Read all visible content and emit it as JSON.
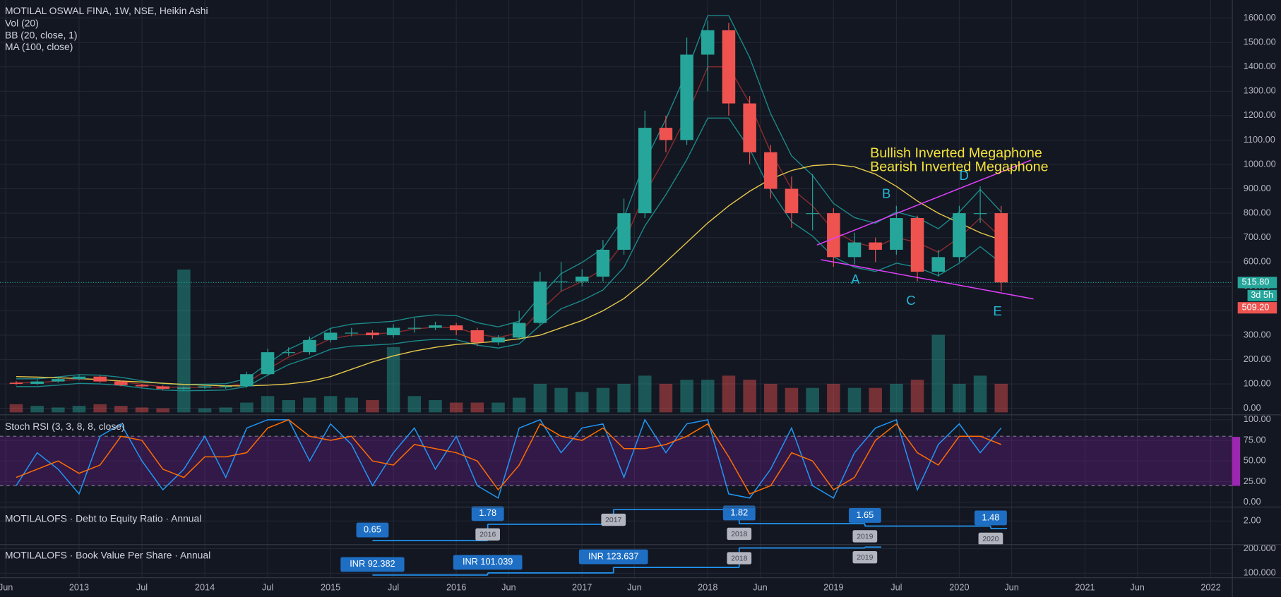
{
  "chart_data": [
    {
      "type": "candlestick",
      "title": "MOTILAL OSWAL FINA, 1W, NSE, Heikin Ashi",
      "indicator_labels": [
        "Vol (20)",
        "BB (20, close, 1)",
        "MA (100, close)"
      ],
      "x": [
        "2012-06",
        "2012-08",
        "2012-10",
        "2012-12",
        "2013-02",
        "2013-04",
        "2013-06",
        "2013-08",
        "2013-10",
        "2013-12",
        "2014-02",
        "2014-04",
        "2014-06",
        "2014-08",
        "2014-10",
        "2014-12",
        "2015-02",
        "2015-04",
        "2015-06",
        "2015-08",
        "2015-10",
        "2015-12",
        "2016-02",
        "2016-04",
        "2016-06",
        "2016-08",
        "2016-10",
        "2016-12",
        "2017-02",
        "2017-04",
        "2017-06",
        "2017-08",
        "2017-10",
        "2017-12",
        "2018-02",
        "2018-04",
        "2018-06",
        "2018-08",
        "2018-10",
        "2018-12",
        "2019-02",
        "2019-04",
        "2019-06",
        "2019-08",
        "2019-10",
        "2019-12",
        "2020-02",
        "2020-04"
      ],
      "open": [
        105,
        100,
        110,
        120,
        130,
        110,
        95,
        90,
        80,
        85,
        90,
        90,
        140,
        230,
        230,
        280,
        310,
        310,
        300,
        330,
        330,
        340,
        320,
        270,
        290,
        350,
        520,
        520,
        540,
        650,
        800,
        1150,
        1100,
        1450,
        1550,
        1250,
        1050,
        900,
        800,
        800,
        620,
        680,
        650,
        780,
        560,
        620,
        800,
        800
      ],
      "high": [
        112,
        118,
        128,
        138,
        135,
        115,
        100,
        95,
        90,
        95,
        95,
        150,
        245,
        250,
        295,
        330,
        330,
        320,
        345,
        370,
        355,
        350,
        330,
        300,
        400,
        560,
        600,
        570,
        690,
        860,
        1220,
        1200,
        1520,
        1590,
        1580,
        1280,
        1080,
        950,
        960,
        820,
        720,
        700,
        830,
        790,
        650,
        830,
        910,
        830
      ],
      "low": [
        95,
        95,
        105,
        115,
        105,
        90,
        85,
        75,
        75,
        80,
        80,
        85,
        135,
        215,
        220,
        270,
        295,
        285,
        290,
        310,
        320,
        300,
        255,
        260,
        280,
        340,
        480,
        500,
        520,
        630,
        780,
        1050,
        1080,
        1300,
        1200,
        1000,
        860,
        740,
        730,
        580,
        590,
        600,
        630,
        520,
        540,
        600,
        760,
        480
      ],
      "close": [
        100,
        110,
        120,
        130,
        110,
        95,
        90,
        80,
        85,
        90,
        90,
        140,
        230,
        230,
        280,
        310,
        310,
        300,
        330,
        330,
        340,
        320,
        270,
        290,
        350,
        520,
        520,
        540,
        650,
        800,
        1150,
        1100,
        1450,
        1550,
        1250,
        1050,
        900,
        800,
        800,
        620,
        680,
        650,
        780,
        560,
        620,
        800,
        800,
        516
      ],
      "up_color": "#26a69a",
      "down_color": "#ef5350",
      "volume": [
        10,
        8,
        6,
        8,
        10,
        8,
        6,
        5,
        175,
        5,
        6,
        12,
        20,
        15,
        18,
        20,
        18,
        15,
        80,
        20,
        15,
        12,
        12,
        12,
        18,
        35,
        30,
        25,
        30,
        35,
        45,
        35,
        40,
        40,
        45,
        40,
        35,
        30,
        30,
        35,
        30,
        30,
        35,
        40,
        95,
        35,
        45,
        35
      ],
      "volume_lim": [
        0,
        100
      ],
      "series": [
        {
          "color": "#1b8a8a",
          "values": [
            121,
            121,
            129,
            138,
            136,
            127,
            113,
            101,
            98,
            99,
            101,
            121,
            184,
            242,
            282,
            328,
            345,
            351,
            357,
            374,
            383,
            380,
            351,
            334,
            357,
            460,
            552,
            598,
            656,
            782,
            1012,
            1185,
            1380,
            1610,
            1610,
            1438,
            1208,
            1035,
            955,
            840,
            782,
            759,
            805,
            782,
            736,
            805,
            897,
            805
          ]
        },
        {
          "color": "#1b8a8a",
          "values": [
            89,
            89,
            95,
            102,
            100,
            94,
            83,
            75,
            72,
            73,
            75,
            89,
            136,
            179,
            208,
            242,
            255,
            259,
            264,
            276,
            283,
            281,
            259,
            247,
            264,
            340,
            408,
            442,
            485,
            578,
            748,
            876,
            1020,
            1190,
            1190,
            1063,
            893,
            765,
            706,
            621,
            578,
            561,
            595,
            578,
            544,
            595,
            663,
            595
          ]
        },
        {
          "color": "#8b2c2c",
          "values": [
            105,
            105,
            112,
            120,
            118,
            110,
            98,
            88,
            85,
            86,
            88,
            105,
            160,
            210,
            245,
            285,
            300,
            305,
            310,
            325,
            333,
            330,
            305,
            290,
            310,
            400,
            480,
            520,
            570,
            680,
            880,
            1030,
            1200,
            1400,
            1400,
            1250,
            1050,
            900,
            830,
            730,
            680,
            660,
            700,
            680,
            640,
            700,
            780,
            700
          ]
        },
        {
          "color": "#e6c84a",
          "values": [
            130,
            128,
            125,
            122,
            118,
            112,
            108,
            103,
            98,
            95,
            92,
            92,
            95,
            100,
            110,
            130,
            160,
            190,
            215,
            235,
            250,
            262,
            268,
            275,
            285,
            300,
            330,
            360,
            400,
            450,
            520,
            600,
            680,
            760,
            830,
            890,
            940,
            975,
            995,
            1000,
            990,
            960,
            910,
            850,
            800,
            760,
            720,
            690
          ]
        }
      ],
      "ylim": [
        -23.4,
        1673.6
      ],
      "yticks": [
        {
          "value": 0,
          "label": "0.00"
        },
        {
          "value": 100,
          "label": "100.00"
        },
        {
          "value": 200,
          "label": "200.00"
        },
        {
          "value": 300,
          "label": "300.00"
        },
        {
          "value": 400,
          "label": "400.00"
        },
        {
          "value": 500,
          "label": "500.00"
        },
        {
          "value": 600,
          "label": "600.00"
        },
        {
          "value": 700,
          "label": "700.00"
        },
        {
          "value": 800,
          "label": "800.00"
        },
        {
          "value": 900,
          "label": "900.00"
        },
        {
          "value": 1000,
          "label": "1000.00"
        },
        {
          "value": 1100,
          "label": "1100.00"
        },
        {
          "value": 1200,
          "label": "1200.00"
        },
        {
          "value": 1300,
          "label": "1300.00"
        },
        {
          "value": 1400,
          "label": "1400.00"
        },
        {
          "value": 1500,
          "label": "1500.00"
        },
        {
          "value": 1600,
          "label": "1600.00"
        }
      ],
      "last_price": {
        "value": 515.8,
        "label": "515.80"
      },
      "countdown": "3d 5h",
      "prev_close": {
        "value": 509.2,
        "label": "509.20"
      },
      "annotations": [
        "Bullish Inverted Megaphone",
        "Bearish Inverted Megaphone"
      ],
      "points": [
        "A",
        "B",
        "C",
        "D",
        "E"
      ]
    },
    {
      "type": "line",
      "title": "Stoch RSI (3, 3, 8, 8, close)",
      "series": [
        {
          "color": "#2196f3",
          "values": [
            20,
            60,
            40,
            10,
            80,
            95,
            50,
            15,
            40,
            80,
            30,
            90,
            100,
            100,
            50,
            95,
            70,
            20,
            60,
            90,
            40,
            80,
            20,
            5,
            90,
            100,
            60,
            90,
            95,
            30,
            100,
            60,
            95,
            100,
            10,
            5,
            40,
            90,
            20,
            5,
            60,
            90,
            100,
            15,
            70,
            95,
            60,
            90
          ]
        },
        {
          "color": "#ff6d00",
          "values": [
            30,
            40,
            50,
            35,
            45,
            80,
            75,
            40,
            30,
            55,
            55,
            60,
            90,
            100,
            80,
            75,
            80,
            50,
            45,
            70,
            65,
            60,
            50,
            15,
            45,
            95,
            80,
            75,
            90,
            65,
            65,
            70,
            80,
            95,
            55,
            10,
            20,
            60,
            50,
            15,
            30,
            75,
            95,
            60,
            45,
            80,
            80,
            70
          ]
        }
      ],
      "band": [
        20,
        80
      ],
      "ylim": [
        -5,
        105
      ],
      "yticks": [
        {
          "value": 0,
          "label": "0.00"
        },
        {
          "value": 25,
          "label": "25.00"
        },
        {
          "value": 50,
          "label": "50.00"
        },
        {
          "value": 75,
          "label": "75.00"
        },
        {
          "value": 100,
          "label": "100.00"
        }
      ]
    },
    {
      "type": "step",
      "title": "MOTILALOFS · Debt to Equity Ratio · Annual",
      "color": "#2196f3",
      "x": [
        "2015-05",
        "2016-04",
        "2017-04",
        "2018-04",
        "2019-04",
        "2020-04"
      ],
      "values": [
        0.65,
        1.78,
        2.8,
        1.82,
        1.65,
        1.48
      ],
      "value_labels": [
        "0.65",
        "1.78",
        null,
        "1.82",
        "1.65",
        "1.48"
      ],
      "period_labels": [
        null,
        "2016",
        "2017",
        "2018",
        "2019",
        "2020"
      ],
      "ylim": [
        0.43,
        2.9
      ],
      "yticks": [
        {
          "value": 2,
          "label": "2.00"
        }
      ]
    },
    {
      "type": "step",
      "title": "MOTILALOFS · Book Value Per Share · Annual",
      "color": "#2196f3",
      "x": [
        "2015-05",
        "2016-04",
        "2017-04",
        "2018-04",
        "2019-04"
      ],
      "values": [
        92.382,
        101.039,
        123.637,
        203,
        213
      ],
      "value_labels": [
        "INR 92.382",
        "INR 101.039",
        "INR 123.637",
        null,
        null
      ],
      "period_labels": [
        null,
        null,
        null,
        "2018",
        "2019"
      ],
      "ylim": [
        83.3,
        213.3
      ],
      "yticks": [
        {
          "value": 100,
          "label": "100.000"
        },
        {
          "value": 200,
          "label": "200.000"
        }
      ]
    }
  ],
  "time_axis": {
    "xlim": [
      "2012-06",
      "2022-01"
    ],
    "xticks": [
      {
        "value": "2012-06",
        "label": "Jun"
      },
      {
        "value": "2013-01",
        "label": "2013"
      },
      {
        "value": "2013-07",
        "label": "Jul"
      },
      {
        "value": "2014-01",
        "label": "2014"
      },
      {
        "value": "2014-07",
        "label": "Jul"
      },
      {
        "value": "2015-01",
        "label": "2015"
      },
      {
        "value": "2015-07",
        "label": "Jul"
      },
      {
        "value": "2016-01",
        "label": "2016"
      },
      {
        "value": "2016-06",
        "label": "Jun"
      },
      {
        "value": "2017-01",
        "label": "2017"
      },
      {
        "value": "2017-06",
        "label": "Jun"
      },
      {
        "value": "2018-01",
        "label": "2018"
      },
      {
        "value": "2018-06",
        "label": "Jun"
      },
      {
        "value": "2019-01",
        "label": "2019"
      },
      {
        "value": "2019-07",
        "label": "Jul"
      },
      {
        "value": "2020-01",
        "label": "2020"
      },
      {
        "value": "2020-06",
        "label": "Jun"
      },
      {
        "value": "2021-01",
        "label": "2021"
      },
      {
        "value": "2021-06",
        "label": "Jun"
      },
      {
        "value": "2022-01",
        "label": "2022"
      }
    ]
  }
}
